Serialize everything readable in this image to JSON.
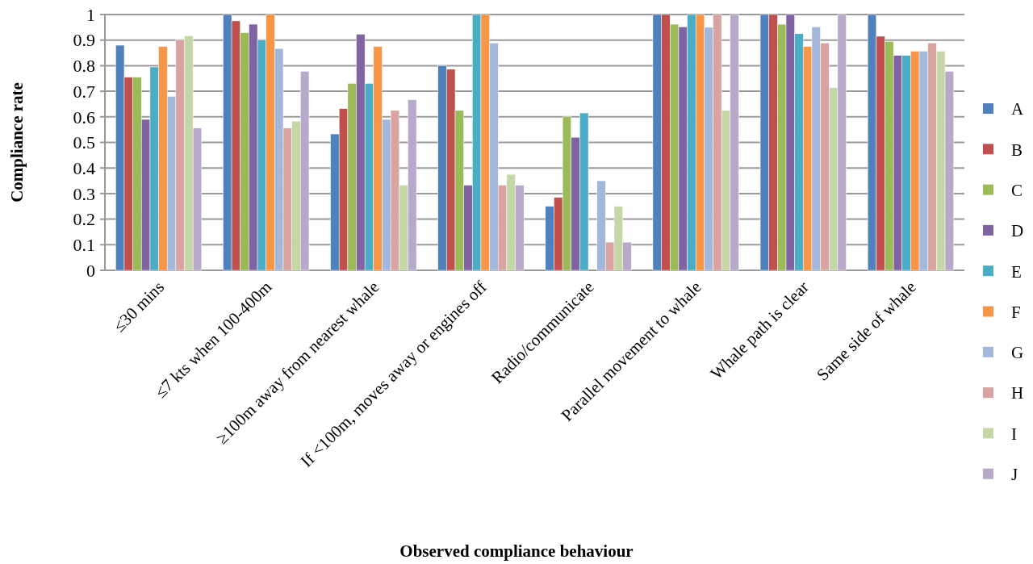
{
  "chart_data": {
    "type": "bar",
    "xlabel": "Observed compliance behaviour",
    "ylabel": "Compliance rate",
    "categories": [
      "≤30 mins",
      "≤7 kts when 100-400m",
      "≥100m away from nearest whale",
      "If <100m, moves away or engines off",
      "Radio/communicate",
      "Parallel movement to whale",
      "Whale path is clear",
      "Same side of whale"
    ],
    "series": [
      {
        "name": "A",
        "color": "#4f81bd",
        "values": [
          0.88,
          1,
          0.533,
          0.8,
          0.25,
          1,
          1,
          1
        ]
      },
      {
        "name": "B",
        "color": "#c0504d",
        "values": [
          0.755,
          0.975,
          0.632,
          0.786,
          0.285,
          1,
          1,
          0.915
        ]
      },
      {
        "name": "C",
        "color": "#9bbb59",
        "values": [
          0.755,
          0.929,
          0.731,
          0.625,
          0.6,
          0.962,
          0.962,
          0.895
        ]
      },
      {
        "name": "D",
        "color": "#8064a2",
        "values": [
          0.59,
          0.962,
          0.923,
          0.333,
          0.52,
          0.952,
          1,
          0.84
        ]
      },
      {
        "name": "E",
        "color": "#4bacc6",
        "values": [
          0.795,
          0.9,
          0.731,
          1,
          0.615,
          1,
          0.925,
          0.84
        ]
      },
      {
        "name": "F",
        "color": "#f79646",
        "values": [
          0.875,
          1,
          0.875,
          1,
          0,
          1,
          0.875,
          0.857
        ]
      },
      {
        "name": "G",
        "color": "#a3b7da",
        "values": [
          0.68,
          0.867,
          0.59,
          0.889,
          0.35,
          0.95,
          0.952,
          0.857
        ]
      },
      {
        "name": "H",
        "color": "#d9a3a1",
        "values": [
          0.9,
          0.556,
          0.625,
          0.333,
          0.11,
          1,
          0.889,
          0.889
        ]
      },
      {
        "name": "I",
        "color": "#c5d6a7",
        "values": [
          0.917,
          0.583,
          0.333,
          0.375,
          0.25,
          0.625,
          0.714,
          0.857
        ]
      },
      {
        "name": "J",
        "color": "#b7a9c9",
        "values": [
          0.556,
          0.778,
          0.667,
          0.333,
          0.11,
          1,
          1,
          0.778
        ]
      }
    ],
    "ylim": [
      0,
      1
    ],
    "yticks": [
      0,
      0.1,
      0.2,
      0.3,
      0.4,
      0.5,
      0.6,
      0.7,
      0.8,
      0.9,
      1
    ],
    "grid": "y",
    "legend": "right"
  }
}
